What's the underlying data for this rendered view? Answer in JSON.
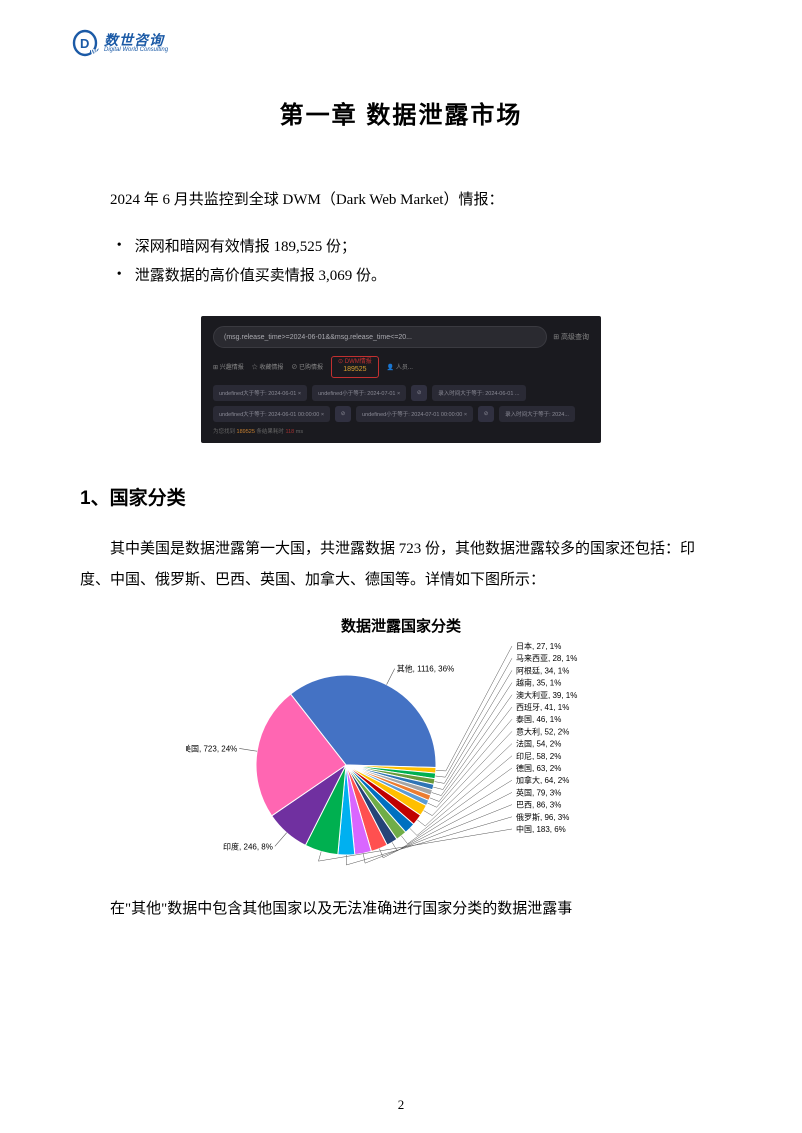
{
  "logo": {
    "cn": "数世咨询",
    "en": "Digital World Consulting",
    "brand_color": "#1b5aa6"
  },
  "chapter_title": "第一章   数据泄露市场",
  "intro": "2024 年 6 月共监控到全球 DWM（Dark Web Market）情报：",
  "bullets": [
    "深网和暗网有效情报 189,525 份；",
    "泄露数据的高价值买卖情报 3,069 份。"
  ],
  "dark_shot": {
    "query": "(msg.release_time>=2024-06-01&&msg.release_time<=20...",
    "adv": "⊞ 高级查询",
    "links": [
      "⊞ 兴趣情报",
      "☆ 收藏情报",
      "⊘ 已购情报",
      "👤 人员..."
    ],
    "count_label": "⊙ DWM情报",
    "count_value": "189525",
    "chips1": [
      "undefined大于等于: 2024-06-01   ×",
      "undefined小于等于: 2024-07-01   ×",
      "⊘",
      "录入时间大于等于: 2024-06-01  ..."
    ],
    "chips2": [
      "undefined大于等于: 2024-06-01 00:00:00   ×",
      "⊘",
      "undefined小于等于: 2024-07-01 00:00:00   ×",
      "⊘",
      "录入时间大于等于: 2024..."
    ],
    "footer_a": "为您找到 ",
    "footer_n1": "189525",
    "footer_b": " 条结果耗时 ",
    "footer_n2": "118",
    "footer_c": " ms"
  },
  "section_heading": "1、国家分类",
  "section_para": "其中美国是数据泄露第一大国，共泄露数据 723 份，其他数据泄露较多的国家还包括：印度、中国、俄罗斯、巴西、英国、加拿大、德国等。详情如下图所示：",
  "pie": {
    "title": "数据泄露国家分类",
    "type": "pie",
    "background_color": "#ffffff",
    "title_fontsize": 15,
    "label_fontsize": 8,
    "slices": [
      {
        "label": "其他, 1116, 36%",
        "value": 36,
        "color": "#4472c4"
      },
      {
        "label": "日本, 27, 1%",
        "value": 1,
        "color": "#ffc000"
      },
      {
        "label": "马来西亚, 28, 1%",
        "value": 1,
        "color": "#00b050"
      },
      {
        "label": "阿根廷, 34, 1%",
        "value": 1,
        "color": "#6a9a3a"
      },
      {
        "label": "越南, 35, 1%",
        "value": 1,
        "color": "#2e75b6"
      },
      {
        "label": "澳大利亚, 39, 1%",
        "value": 1,
        "color": "#a5a5a5"
      },
      {
        "label": "西班牙, 41, 1%",
        "value": 1,
        "color": "#ed7d31"
      },
      {
        "label": "泰国, 46, 1%",
        "value": 1,
        "color": "#5b9bd5"
      },
      {
        "label": "意大利, 52, 2%",
        "value": 2,
        "color": "#ffbf00"
      },
      {
        "label": "法国, 54, 2%",
        "value": 2,
        "color": "#c00000"
      },
      {
        "label": "印尼, 58, 2%",
        "value": 2,
        "color": "#0070c0"
      },
      {
        "label": "德国, 63, 2%",
        "value": 2,
        "color": "#70ad47"
      },
      {
        "label": "加拿大, 64, 2%",
        "value": 2,
        "color": "#264478"
      },
      {
        "label": "英国, 79, 3%",
        "value": 3,
        "color": "#ff5050"
      },
      {
        "label": "巴西, 86, 3%",
        "value": 3,
        "color": "#d966ff"
      },
      {
        "label": "俄罗斯, 96, 3%",
        "value": 3,
        "color": "#00b0f0"
      },
      {
        "label": "中国, 183, 6%",
        "value": 6,
        "color": "#00b050"
      },
      {
        "label": "印度, 246, 8%",
        "value": 8,
        "color": "#7030a0"
      },
      {
        "label": "美国, 723, 24%",
        "value": 24,
        "color": "#ff66b2"
      }
    ],
    "start_angle_deg": -128
  },
  "closing_para": "在\"其他\"数据中包含其他国家以及无法准确进行国家分类的数据泄露事",
  "page_number": "2"
}
